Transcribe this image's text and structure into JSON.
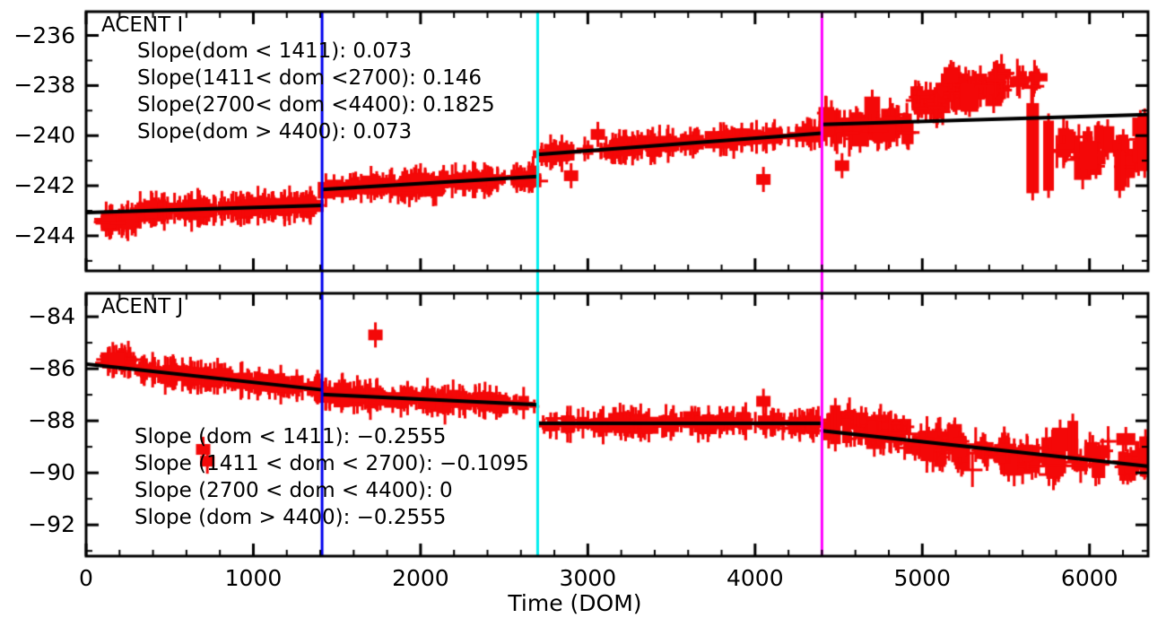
{
  "chart_data": {
    "type": "scatter",
    "xlabel": "Time (DOM)",
    "xlim": [
      0,
      6350
    ],
    "x_major_ticks": [
      0,
      1000,
      2000,
      3000,
      4000,
      5000,
      6000
    ],
    "x_tick_labels": [
      "0",
      "1000",
      "2000",
      "3000",
      "4000",
      "5000",
      "6000"
    ],
    "x_minor_step": 200,
    "grid": false,
    "marker_color": "#f40808",
    "fit_color": "#000000",
    "axis_color": "#000000",
    "vlines": [
      {
        "x": 1411,
        "color": "#0000ee",
        "name": "dom-1411-line"
      },
      {
        "x": 2700,
        "color": "#00eeee",
        "name": "dom-2700-line"
      },
      {
        "x": 4400,
        "color": "#ff00ff",
        "name": "dom-4400-line"
      }
    ],
    "panels": [
      {
        "title": "ACENT I",
        "ylim": [
          -245.4,
          -235.05
        ],
        "y_major_ticks": [
          -236,
          -238,
          -240,
          -242,
          -244
        ],
        "y_tick_labels": [
          "−236",
          "−238",
          "−240",
          "−242",
          "−244"
        ],
        "y_minor_step": 1,
        "slopes": {
          "dom_lt_1411": 0.073,
          "dom_1411_2700": 0.146,
          "dom_2700_4400": 0.1825,
          "dom_gt_4400": 0.073
        },
        "annotations": [
          "Slope(dom < 1411): 0.073",
          "Slope(1411< dom <2700): 0.146",
          "Slope(2700< dom <4400): 0.1825",
          "Slope(dom > 4400): 0.073"
        ],
        "fit_segments": [
          {
            "x1": 0,
            "y1": -243.07,
            "x2": 1411,
            "y2": -242.79
          },
          {
            "x1": 1411,
            "y1": -242.15,
            "x2": 2700,
            "y2": -241.63
          },
          {
            "x1": 2700,
            "y1": -240.75,
            "x2": 4400,
            "y2": -239.9
          },
          {
            "x1": 4400,
            "y1": -239.55,
            "x2": 6350,
            "y2": -239.16
          }
        ],
        "clusters": [
          {
            "x0": 110,
            "x1": 300,
            "dy": -0.38,
            "sy": 0.1,
            "n": 22,
            "hs": 1.0
          },
          {
            "x0": 300,
            "x1": 1400,
            "dy": 0.0,
            "sy": 0.12,
            "n": 130,
            "hs": 1.0
          },
          {
            "x0": 1430,
            "x1": 2690,
            "dy": 0.0,
            "sy": 0.13,
            "n": 115,
            "hs": 1.0
          },
          {
            "x0": 1850,
            "x1": 2100,
            "dy": -0.3,
            "sy": 0.12,
            "n": 10,
            "hs": 1.0
          },
          {
            "x0": 2720,
            "x1": 4390,
            "dy": 0.0,
            "sy": 0.15,
            "n": 115,
            "hs": 1.0
          },
          {
            "x0": 4420,
            "x1": 4950,
            "dy": -0.15,
            "sy": 0.55,
            "n": 40,
            "hs": 1.6
          },
          {
            "x0": 4950,
            "x1": 5150,
            "dy": 0.7,
            "sy": 0.45,
            "n": 24,
            "hs": 1.6
          },
          {
            "x0": 5150,
            "x1": 5350,
            "dy": 1.25,
            "sy": 0.45,
            "n": 24,
            "hs": 1.6
          },
          {
            "x0": 5350,
            "x1": 5700,
            "dy": 1.45,
            "sy": 0.35,
            "n": 22,
            "hs": 1.5
          },
          {
            "x0": 5800,
            "x1": 6340,
            "dy": -1.3,
            "sy": 0.75,
            "n": 32,
            "hs": 1.7
          }
        ],
        "outliers": [
          {
            "x": 2900,
            "y": -241.6
          },
          {
            "x": 4050,
            "y": -241.75
          },
          {
            "x": 3060,
            "y": -239.95
          },
          {
            "x": 4520,
            "y": -241.2
          }
        ],
        "bars": [
          {
            "x": 5660,
            "y1": -238.7,
            "y2": -242.3,
            "w": 14
          },
          {
            "x": 5755,
            "y1": -239.4,
            "y2": -242.2,
            "w": 12
          },
          {
            "x": 6180,
            "y1": -240.6,
            "y2": -242.2,
            "w": 12
          },
          {
            "x": 6330,
            "y1": -239.2,
            "y2": -241.4,
            "w": 16
          }
        ]
      },
      {
        "title": "ACENT J",
        "ylim": [
          -93.2,
          -83.1
        ],
        "y_major_ticks": [
          -84,
          -86,
          -88,
          -90,
          -92
        ],
        "y_tick_labels": [
          "−84",
          "−86",
          "−88",
          "−90",
          "−92"
        ],
        "y_minor_step": 1,
        "slopes": {
          "dom_lt_1411": -0.2555,
          "dom_1411_2700": -0.1095,
          "dom_2700_4400": 0,
          "dom_gt_4400": -0.2555
        },
        "annotations": [
          "Slope (dom < 1411): −0.2555",
          "Slope (1411 < dom < 2700): −0.1095",
          "Slope (2700 < dom < 4400): 0",
          "Slope (dom > 4400): −0.2555"
        ],
        "fit_segments": [
          {
            "x1": 0,
            "y1": -85.82,
            "x2": 1411,
            "y2": -86.81
          },
          {
            "x1": 1411,
            "y1": -86.99,
            "x2": 2700,
            "y2": -87.38
          },
          {
            "x1": 2700,
            "y1": -88.1,
            "x2": 4400,
            "y2": -88.1
          },
          {
            "x1": 4400,
            "y1": -88.38,
            "x2": 6350,
            "y2": -89.75
          }
        ],
        "clusters": [
          {
            "x0": 130,
            "x1": 300,
            "dy": 0.3,
            "sy": 0.14,
            "n": 22,
            "hs": 1.0
          },
          {
            "x0": 300,
            "x1": 1400,
            "dy": 0.0,
            "sy": 0.16,
            "n": 130,
            "hs": 1.0
          },
          {
            "x0": 1430,
            "x1": 2690,
            "dy": 0.0,
            "sy": 0.16,
            "n": 110,
            "hs": 1.0
          },
          {
            "x0": 2720,
            "x1": 4390,
            "dy": 0.0,
            "sy": 0.2,
            "n": 115,
            "hs": 1.0
          },
          {
            "x0": 4420,
            "x1": 5000,
            "dy": 0.2,
            "sy": 0.5,
            "n": 42,
            "hs": 1.6
          },
          {
            "x0": 5000,
            "x1": 5600,
            "dy": -0.1,
            "sy": 0.55,
            "n": 45,
            "hs": 1.6
          },
          {
            "x0": 5600,
            "x1": 6340,
            "dy": 0.1,
            "sy": 0.65,
            "n": 40,
            "hs": 1.6
          }
        ],
        "outliers": [
          {
            "x": 700,
            "y": -89.1
          },
          {
            "x": 725,
            "y": -89.55
          },
          {
            "x": 1730,
            "y": -84.7
          },
          {
            "x": 4050,
            "y": -87.25
          }
        ],
        "bars": [
          {
            "x": 4480,
            "y1": -87.4,
            "y2": -88.9,
            "w": 12
          },
          {
            "x": 5900,
            "y1": -88.0,
            "y2": -89.6,
            "w": 12
          },
          {
            "x": 6335,
            "y1": -88.6,
            "y2": -89.9,
            "w": 14
          }
        ]
      }
    ]
  }
}
